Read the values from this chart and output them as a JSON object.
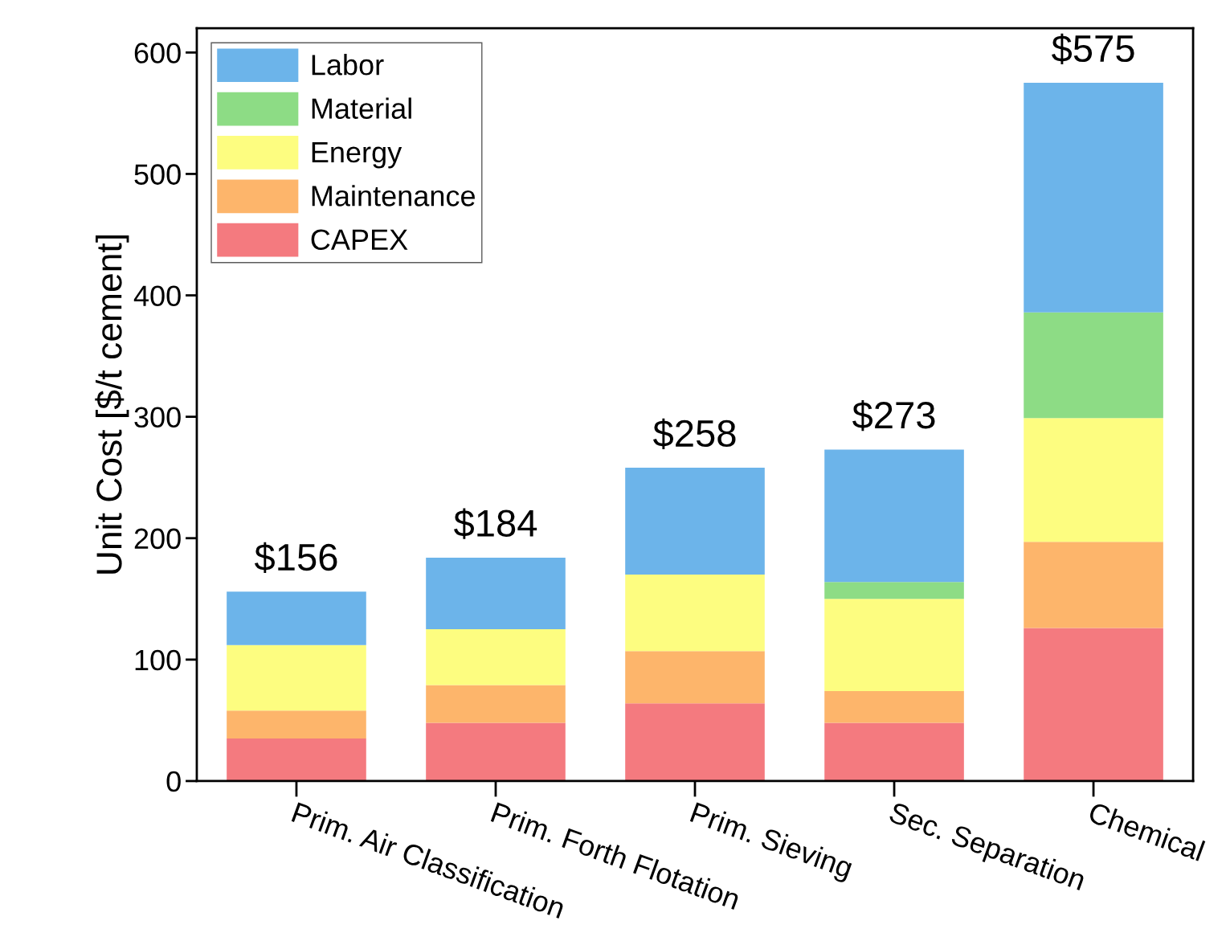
{
  "chart_data": {
    "type": "bar",
    "stacked": true,
    "ylabel": "Unit Cost [$/t cement]",
    "categories": [
      "Prim. Air Classification",
      "Prim. Forth Flotation",
      "Prim. Sieving",
      "Sec. Separation",
      "Chemical"
    ],
    "series": [
      {
        "name": "CAPEX",
        "color": "#f47a7f",
        "values": [
          35,
          48,
          64,
          48,
          126
        ]
      },
      {
        "name": "Maintenance",
        "color": "#fdb56b",
        "values": [
          23,
          31,
          43,
          26,
          71
        ]
      },
      {
        "name": "Energy",
        "color": "#fdfd80",
        "values": [
          54,
          46,
          63,
          76,
          102
        ]
      },
      {
        "name": "Material",
        "color": "#8ddc85",
        "values": [
          0,
          0,
          0,
          14,
          87
        ]
      },
      {
        "name": "Labor",
        "color": "#6cb4ea",
        "values": [
          44,
          59,
          88,
          109,
          189
        ]
      }
    ],
    "totals": [
      "$156",
      "$184",
      "$258",
      "$273",
      "$575"
    ],
    "ylim": [
      0,
      620
    ],
    "yticks": [
      0,
      100,
      200,
      300,
      400,
      500,
      600
    ],
    "grid": false,
    "legend": "top left"
  }
}
